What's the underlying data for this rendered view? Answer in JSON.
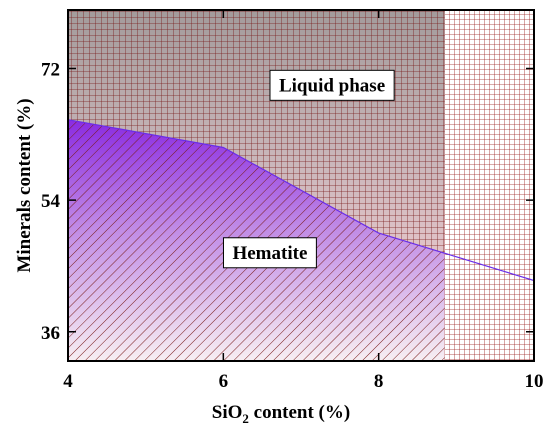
{
  "chart_data": {
    "type": "area",
    "title": "",
    "xlabel": {
      "main": "SiO",
      "sub": "2",
      "rest": " content (%)"
    },
    "ylabel": "Minerals content (%)",
    "xlim": [
      4,
      10
    ],
    "ylim": [
      32,
      80
    ],
    "x_ticks": [
      4,
      6,
      8,
      10
    ],
    "y_ticks": [
      36,
      54,
      72
    ],
    "grid": false,
    "boundary": {
      "name": "",
      "x": [
        4,
        6,
        8,
        10
      ],
      "y": [
        65.0,
        61.2,
        49.5,
        43.0
      ]
    },
    "annotations": [
      {
        "text": "Liquid phase",
        "x": 7.4,
        "y": 69.7
      },
      {
        "text": "Hematite",
        "x": 6.6,
        "y": 46.8
      }
    ],
    "fine_grid_region": {
      "x_start": 8.85,
      "x_end": 10
    },
    "colors": {
      "hatch": "#7a1c1c",
      "purple": "#8a2be2",
      "liquid_top": "#a8a0a0",
      "boundary_line": "#6a2ee8"
    }
  }
}
